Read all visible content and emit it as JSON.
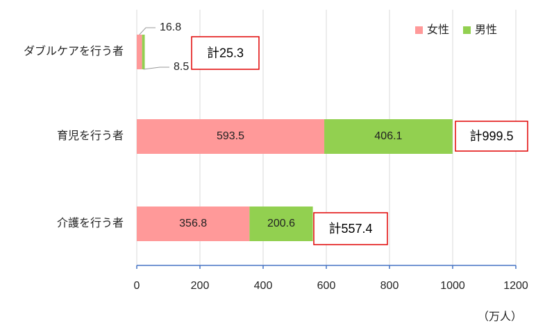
{
  "chart_data": {
    "type": "stacked-bar-horizontal",
    "categories": [
      "ダブルケアを行う者",
      "育児を行う者",
      "介護を行う者"
    ],
    "series": [
      {
        "name": "女性",
        "color": "#ff9999",
        "values": [
          16.8,
          593.5,
          356.8
        ]
      },
      {
        "name": "男性",
        "color": "#92d050",
        "values": [
          8.5,
          406.1,
          200.6
        ]
      }
    ],
    "total_labels": [
      "計25.3",
      "計999.5",
      "計557.4"
    ],
    "unit_label": "（万人）",
    "xlim": [
      0,
      1200
    ],
    "xticks": [
      0,
      200,
      400,
      600,
      800,
      1000,
      1200
    ],
    "grid": true,
    "legend": "top-right"
  }
}
